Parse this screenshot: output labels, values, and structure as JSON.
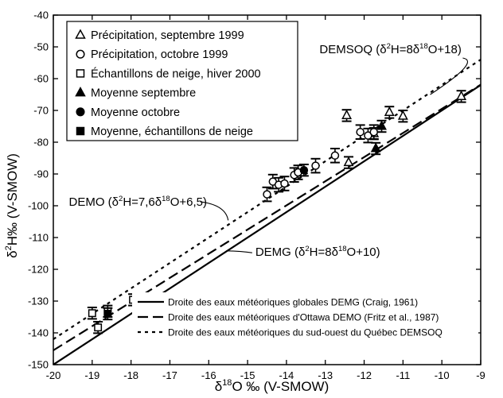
{
  "chart_data": {
    "type": "scatter",
    "title": "",
    "xlabel": {
      "base": "δ",
      "sup": "18",
      "rest": "O ‰ (V-SMOW)"
    },
    "ylabel": {
      "base": "δ",
      "sup": "2",
      "rest": "H‰  (V-SMOW)"
    },
    "xlim": [
      -20,
      -9
    ],
    "ylim": [
      -150,
      -40
    ],
    "x_ticks": [
      -20,
      -19,
      -18,
      -17,
      -16,
      -15,
      -14,
      -13,
      -12,
      -11,
      -10,
      -9
    ],
    "y_ticks": [
      -40,
      -50,
      -60,
      -70,
      -80,
      -90,
      -100,
      -110,
      -120,
      -130,
      -140,
      -150
    ],
    "grid": false,
    "legend_markers": {
      "position": "top-left",
      "entries": [
        {
          "marker": "open-triangle",
          "label": "Précipitation, septembre 1999"
        },
        {
          "marker": "open-circle",
          "label": "Précipitation, octobre 1999"
        },
        {
          "marker": "open-square",
          "label": "Échantillons de neige, hiver 2000"
        },
        {
          "marker": "filled-triangle",
          "label": "Moyenne septembre"
        },
        {
          "marker": "filled-circle",
          "label": "Moyenne octobre"
        },
        {
          "marker": "filled-square",
          "label": "Moyenne, échantillons de neige"
        }
      ]
    },
    "legend_lines": {
      "position": "bottom-right",
      "entries": [
        {
          "style": "solid",
          "label": "Droite des eaux météoriques globales DEMG (Craig, 1961)"
        },
        {
          "style": "dashed",
          "label": "Droite des eaux météoriques d'Ottawa DEMO (Fritz et al., 1987)"
        },
        {
          "style": "dotted",
          "label": "Droite des eaux météoriques du sud-ouest du Québec DEMSOQ"
        }
      ]
    },
    "lines": [
      {
        "id": "DEMG",
        "style": "solid",
        "slope": 8,
        "intercept": 10
      },
      {
        "id": "DEMO",
        "style": "dashed",
        "slope": 7.6,
        "intercept": 6.5
      },
      {
        "id": "DEMSOQ",
        "style": "dotted",
        "slope": 8,
        "intercept": 18
      }
    ],
    "annotations": [
      {
        "id": "DEMSOQ",
        "parts": [
          [
            "t",
            "DEMSOQ (δ"
          ],
          [
            "sup",
            "2"
          ],
          [
            "t",
            "H=8δ"
          ],
          [
            "sup",
            "18"
          ],
          [
            "t",
            "O+18)"
          ]
        ],
        "x": -13.15,
        "y": -52,
        "target": [
          -10.3,
          -65
        ]
      },
      {
        "id": "DEMO",
        "parts": [
          [
            "t",
            "DEMO (δ"
          ],
          [
            "sup",
            "2"
          ],
          [
            "t",
            "H=7,6δ"
          ],
          [
            "sup",
            "18"
          ],
          [
            "t",
            "O+6,5)"
          ]
        ],
        "x": -19.6,
        "y": -100,
        "target": [
          -15.5,
          -104.6
        ]
      },
      {
        "id": "DEMG",
        "parts": [
          [
            "t",
            "DEMG (δ"
          ],
          [
            "sup",
            "2"
          ],
          [
            "t",
            "H=8δ"
          ],
          [
            "sup",
            "18"
          ],
          [
            "t",
            "O+10)"
          ]
        ],
        "x": -14.8,
        "y": -115.8,
        "target": [
          -15.55,
          -114.2
        ]
      }
    ],
    "series": [
      {
        "name": "Précipitation, septembre 1999",
        "marker": "open-triangle",
        "err": 1.8,
        "points": [
          [
            -12.45,
            -71.6
          ],
          [
            -12.4,
            -86.4
          ],
          [
            -11.75,
            -77.3
          ],
          [
            -11.35,
            -70.6
          ],
          [
            -11.0,
            -71.8
          ],
          [
            -9.5,
            -65.6
          ]
        ]
      },
      {
        "name": "Précipitation, octobre 1999",
        "marker": "open-circle",
        "err": 2.2,
        "points": [
          [
            -14.5,
            -96.4
          ],
          [
            -14.35,
            -92.4
          ],
          [
            -14.2,
            -93.4
          ],
          [
            -13.8,
            -90.3
          ],
          [
            -13.25,
            -87.4
          ],
          [
            -12.75,
            -84.2
          ],
          [
            -12.1,
            -76.8
          ],
          [
            -11.9,
            -77.9
          ],
          [
            -11.75,
            -76.8
          ],
          [
            -13.7,
            -89.5
          ],
          [
            -14.05,
            -93.0
          ]
        ]
      },
      {
        "name": "Échantillons de neige, hiver 2000",
        "marker": "open-square",
        "err": 1.8,
        "points": [
          [
            -19.0,
            -133.8
          ],
          [
            -18.85,
            -138.3
          ],
          [
            -18.6,
            -133.2
          ],
          [
            -17.95,
            -129.6
          ]
        ]
      },
      {
        "name": "Moyenne septembre",
        "marker": "filled-triangle",
        "err": 1.8,
        "points": [
          [
            -11.7,
            -82.0
          ],
          [
            -11.55,
            -75.0
          ]
        ]
      },
      {
        "name": "Moyenne octobre",
        "marker": "filled-circle",
        "err": 1.8,
        "points": [
          [
            -13.55,
            -88.8
          ]
        ]
      },
      {
        "name": "Moyenne, échantillons de neige",
        "marker": "filled-square",
        "err": 1.8,
        "points": [
          [
            -18.6,
            -134.0
          ]
        ]
      }
    ]
  }
}
